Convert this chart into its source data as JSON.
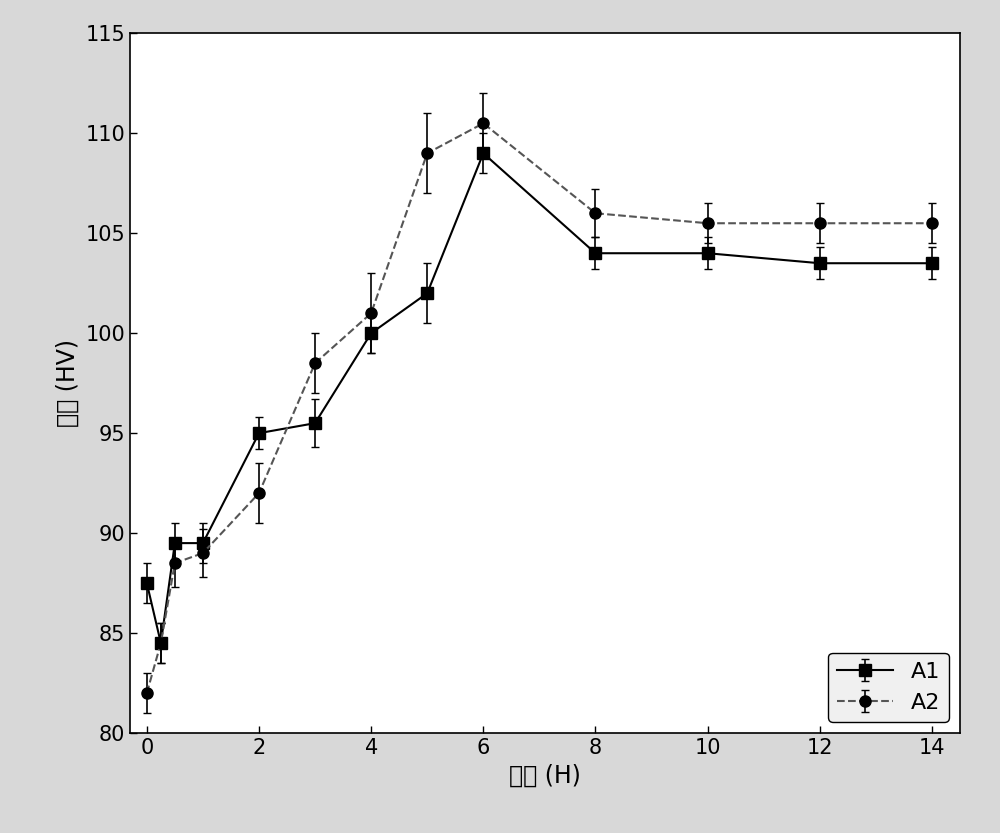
{
  "A1_x": [
    0,
    0.25,
    0.5,
    1,
    2,
    3,
    4,
    5,
    6,
    8,
    10,
    12,
    14
  ],
  "A1_y": [
    87.5,
    84.5,
    89.5,
    89.5,
    95.0,
    95.5,
    100.0,
    102.0,
    109.0,
    104.0,
    104.0,
    103.5,
    103.5
  ],
  "A1_yerr": [
    1.0,
    1.0,
    1.0,
    1.0,
    0.8,
    1.2,
    1.0,
    1.5,
    1.0,
    0.8,
    0.8,
    0.8,
    0.8
  ],
  "A2_x": [
    0,
    0.25,
    0.5,
    1,
    2,
    3,
    4,
    5,
    6,
    8,
    10,
    12,
    14
  ],
  "A2_y": [
    82.0,
    84.5,
    88.5,
    89.0,
    92.0,
    98.5,
    101.0,
    109.0,
    110.5,
    106.0,
    105.5,
    105.5,
    105.5
  ],
  "A2_yerr": [
    1.0,
    1.0,
    1.2,
    1.2,
    1.5,
    1.5,
    2.0,
    2.0,
    1.5,
    1.2,
    1.0,
    1.0,
    1.0
  ],
  "xlabel": "时间 (H)",
  "ylabel": "硬度 (HV)",
  "xlim": [
    -0.3,
    14.5
  ],
  "ylim": [
    80,
    115
  ],
  "xticks": [
    0,
    2,
    4,
    6,
    8,
    10,
    12,
    14
  ],
  "yticks": [
    80,
    85,
    90,
    95,
    100,
    105,
    110,
    115
  ],
  "legend_labels": [
    "A1",
    "A2"
  ],
  "line_color_A1": "#000000",
  "line_color_A2": "#555555",
  "marker_A1": "s",
  "marker_A2": "o",
  "linestyle_A1": "-",
  "linestyle_A2": "--",
  "markersize": 8,
  "linewidth": 1.5,
  "background_color": "#d8d8d8",
  "plot_bg_color": "#ffffff",
  "font_size_label": 17,
  "font_size_tick": 15,
  "font_size_legend": 16
}
